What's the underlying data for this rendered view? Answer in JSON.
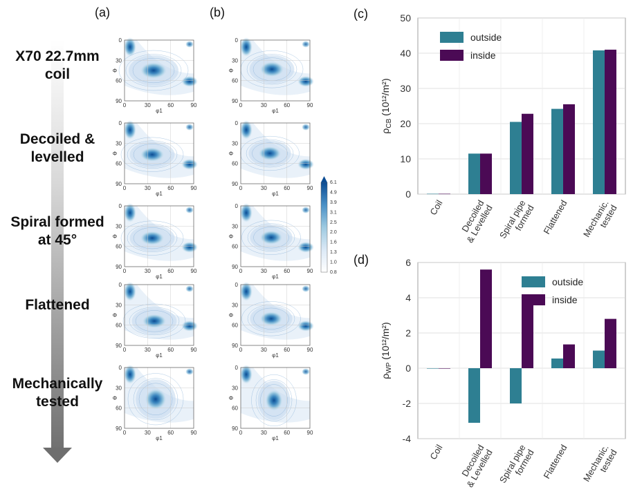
{
  "stages": [
    "X70 22.7mm\ncoil",
    "Decoiled &\nlevelled",
    "Spiral formed\nat 45°",
    "Flattened",
    "Mechanically\ntested"
  ],
  "panel_labels": [
    "(a)",
    "(b)",
    "(c)",
    "(d)"
  ],
  "odf": {
    "x_ticks": [
      "0",
      "30",
      "60",
      "90"
    ],
    "y_ticks": [
      "0",
      "30",
      "60",
      "90"
    ],
    "xlabel": "φ1",
    "ylabel": "Φ",
    "colorbar_ticks": [
      "6.1",
      "4.9",
      "3.9",
      "3.1",
      "2.5",
      "2.0",
      "1.6",
      "1.3",
      "1.0",
      "0.8"
    ],
    "colormap": [
      "#ffffff",
      "#eef5fb",
      "#dbe9f6",
      "#c6dbef",
      "#a6cde6",
      "#82badb",
      "#5ea3cf",
      "#3c87bf",
      "#1f69ad",
      "#0b4c93"
    ]
  },
  "chart_data": [
    {
      "type": "bar",
      "categories": [
        "Coil",
        "Decoiled\n& Levelled",
        "Spiral pipe\nformed",
        "Flattened",
        "Mechanic.\ntested"
      ],
      "series": [
        {
          "name": "outside",
          "values": [
            0.1,
            11.5,
            20.5,
            24.2,
            40.8
          ]
        },
        {
          "name": "inside",
          "values": [
            0.1,
            11.5,
            22.8,
            25.5,
            41.0
          ]
        }
      ],
      "ylabel": "ρCB (10¹²/m²)",
      "ylim": [
        0,
        50
      ],
      "yticks": [
        0,
        10,
        20,
        30,
        40,
        50
      ],
      "grid": true,
      "legend": "top-left",
      "colors": [
        "#2e7f92",
        "#4b0a55"
      ]
    },
    {
      "type": "bar",
      "categories": [
        "Coil",
        "Decoiled\n& Levelled",
        "Spiral pipe\nformed",
        "Flattened",
        "Mechanic.\ntested"
      ],
      "series": [
        {
          "name": "outside",
          "values": [
            0,
            -3.1,
            -2.0,
            0.55,
            1.0
          ]
        },
        {
          "name": "inside",
          "values": [
            0,
            5.6,
            3.75,
            1.35,
            2.8
          ]
        }
      ],
      "ylabel": "ρWP (10¹²/m²)",
      "ylim": [
        -4,
        6
      ],
      "yticks": [
        -4,
        -2,
        0,
        2,
        4,
        6
      ],
      "grid": true,
      "legend": "top-right",
      "colors": [
        "#2e7f92",
        "#4b0a55"
      ]
    }
  ]
}
